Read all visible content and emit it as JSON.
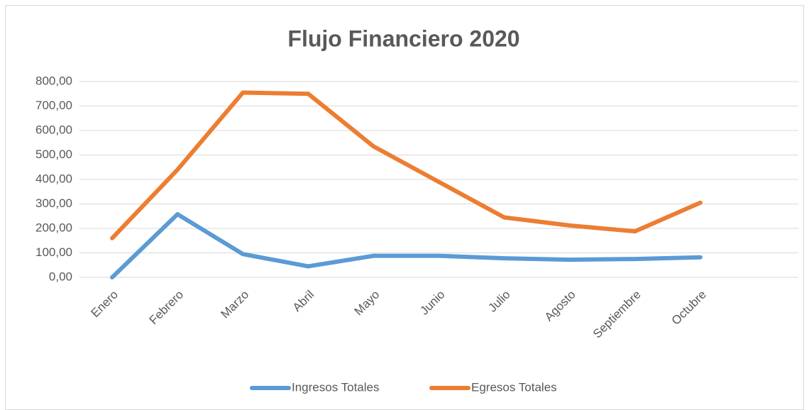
{
  "chart_data": {
    "type": "line",
    "title": "Flujo Financiero 2020",
    "categories": [
      "Enero",
      "Febrero",
      "Marzo",
      "Abril",
      "Mayo",
      "Junio",
      "Julio",
      "Agosto",
      "Septiembre",
      "Octubre",
      null
    ],
    "series": [
      {
        "name": "Ingresos Totales",
        "color": "#5b9bd5",
        "values": [
          0,
          258,
          95,
          45,
          88,
          88,
          78,
          72,
          75,
          82,
          null
        ]
      },
      {
        "name": "Egresos Totales",
        "color": "#ed7d31",
        "values": [
          160,
          440,
          755,
          750,
          535,
          390,
          245,
          212,
          188,
          305,
          null
        ]
      }
    ],
    "ylim": [
      0,
      800
    ],
    "yticks": [
      {
        "value": 0,
        "label": "0,00"
      },
      {
        "value": 100,
        "label": "100,00"
      },
      {
        "value": 200,
        "label": "200,00"
      },
      {
        "value": 300,
        "label": "300,00"
      },
      {
        "value": 400,
        "label": "400,00"
      },
      {
        "value": 500,
        "label": "500,00"
      },
      {
        "value": 600,
        "label": "600,00"
      },
      {
        "value": 700,
        "label": "700,00"
      },
      {
        "value": 800,
        "label": "800,00"
      }
    ],
    "grid": true,
    "legend": "bottom"
  }
}
